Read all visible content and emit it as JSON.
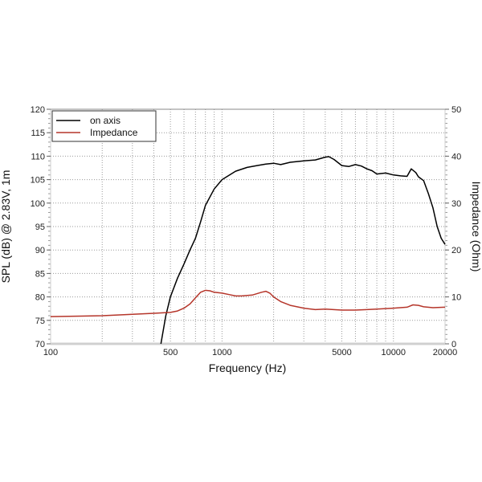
{
  "chart_data": {
    "type": "line",
    "title": "",
    "xlabel": "Frequency (Hz)",
    "ylabel": "SPL (dB) @ 2.83V, 1m",
    "y2label": "Impedance (Ohm)",
    "xscale": "log",
    "xlim": [
      100,
      20000
    ],
    "ylim": [
      70,
      120
    ],
    "y2lim": [
      0,
      50
    ],
    "x_ticks": [
      100,
      500,
      1000,
      5000,
      10000,
      20000
    ],
    "x_tick_labels": [
      "100",
      "500",
      "1000",
      "5000",
      "10000",
      "20000"
    ],
    "y_ticks": [
      70,
      75,
      80,
      85,
      90,
      95,
      100,
      105,
      110,
      115,
      120
    ],
    "y2_ticks": [
      0,
      10,
      20,
      30,
      40,
      50
    ],
    "grid": true,
    "legend_position": "upper left",
    "series": [
      {
        "name": "on axis",
        "axis": "left",
        "color": "#000000",
        "x": [
          440,
          470,
          500,
          550,
          600,
          650,
          700,
          750,
          800,
          900,
          1000,
          1200,
          1400,
          1600,
          1800,
          2000,
          2200,
          2500,
          3000,
          3500,
          4000,
          4200,
          4500,
          5000,
          5500,
          6000,
          6500,
          7000,
          7500,
          8000,
          9000,
          10000,
          11000,
          12000,
          12700,
          13500,
          14000,
          15000,
          16000,
          17000,
          18000,
          19000,
          20000
        ],
        "values": [
          70,
          76,
          80,
          84,
          87,
          90,
          92.5,
          96,
          99.5,
          103,
          105,
          106.8,
          107.6,
          108,
          108.3,
          108.5,
          108.2,
          108.7,
          109,
          109.2,
          109.8,
          109.9,
          109.3,
          108,
          107.8,
          108.2,
          107.9,
          107.3,
          106.9,
          106.2,
          106.4,
          106,
          105.8,
          105.7,
          107.3,
          106.5,
          105.6,
          104.8,
          102,
          99,
          95,
          92.5,
          91.2
        ]
      },
      {
        "name": "Impedance",
        "axis": "right",
        "color": "#b5352a",
        "x": [
          100,
          150,
          200,
          300,
          400,
          500,
          550,
          600,
          650,
          700,
          750,
          800,
          850,
          900,
          1000,
          1100,
          1200,
          1300,
          1500,
          1700,
          1800,
          1900,
          2000,
          2200,
          2500,
          3000,
          3500,
          4000,
          5000,
          6000,
          7000,
          8000,
          10000,
          12000,
          13000,
          14000,
          15000,
          17000,
          20000
        ],
        "values": [
          5.8,
          5.9,
          6,
          6.3,
          6.5,
          6.7,
          7,
          7.6,
          8.5,
          9.8,
          11,
          11.4,
          11.3,
          11,
          10.8,
          10.5,
          10.2,
          10.2,
          10.4,
          11,
          11.2,
          10.8,
          10,
          9,
          8.2,
          7.6,
          7.3,
          7.4,
          7.2,
          7.2,
          7.3,
          7.4,
          7.6,
          7.8,
          8.3,
          8.2,
          7.9,
          7.7,
          7.8
        ]
      }
    ]
  },
  "legend": {
    "items": [
      {
        "label": "on axis",
        "color": "#000000"
      },
      {
        "label": "Impedance",
        "color": "#b5352a"
      }
    ]
  },
  "axes": {
    "xlabel": "Frequency (Hz)",
    "ylabel": "SPL (dB) @ 2.83V, 1m",
    "y2label": "Impedance (Ohm)"
  }
}
